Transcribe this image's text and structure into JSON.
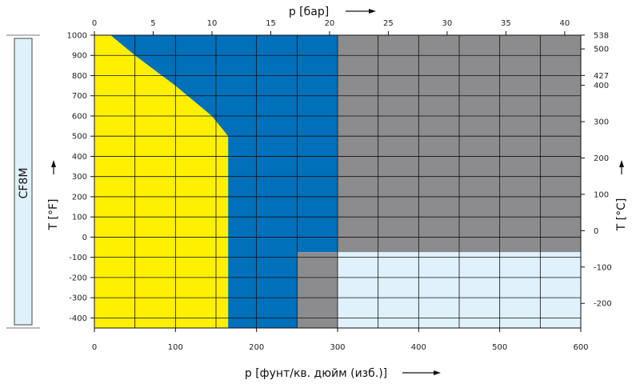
{
  "chart_data": {
    "type": "area",
    "material_label": "CF8M",
    "colors": {
      "yellow_region": "#FFF000",
      "blue_region": "#0070BA",
      "grey_region": "#8C8C8E",
      "light_blue_region": "#DFF1FB",
      "grid": "#111111"
    },
    "x_bottom": {
      "label": "p [фунт/кв. дюйм (изб.)]",
      "unit": "psig",
      "range": [
        0,
        600
      ],
      "ticks": [
        0,
        100,
        200,
        300,
        400,
        500,
        600
      ]
    },
    "x_top": {
      "label": "p [бар]",
      "unit": "bar",
      "range": [
        0,
        41.37
      ],
      "ticks": [
        0,
        5,
        10,
        15,
        20,
        25,
        30,
        35,
        40
      ]
    },
    "y_left": {
      "label": "T [°F]",
      "unit": "°F",
      "range": [
        -450,
        1000
      ],
      "ticks": [
        -400,
        -300,
        -200,
        -100,
        0,
        100,
        200,
        300,
        400,
        500,
        600,
        700,
        800,
        900,
        1000
      ]
    },
    "y_right": {
      "label": "T [°C]",
      "unit": "°C",
      "ticks": [
        -200,
        -100,
        0,
        100,
        200,
        300,
        400,
        427,
        500,
        538
      ]
    },
    "regions": [
      {
        "name": "yellow",
        "color": "yellow_region",
        "polygon": [
          [
            0,
            -450
          ],
          [
            0,
            1000
          ],
          [
            20,
            1000
          ],
          [
            50,
            900
          ],
          [
            100,
            750
          ],
          [
            145,
            600
          ],
          [
            165,
            500
          ],
          [
            165,
            -450
          ]
        ]
      },
      {
        "name": "blue",
        "color": "blue_region",
        "polygon": [
          [
            20,
            1000
          ],
          [
            300,
            1000
          ],
          [
            300,
            -75
          ],
          [
            250,
            -75
          ],
          [
            250,
            -450
          ],
          [
            165,
            -450
          ],
          [
            165,
            500
          ],
          [
            145,
            600
          ],
          [
            100,
            750
          ],
          [
            50,
            900
          ]
        ]
      },
      {
        "name": "grey",
        "color": "grey_region",
        "polygon": [
          [
            300,
            1000
          ],
          [
            600,
            1000
          ],
          [
            600,
            -75
          ],
          [
            300,
            -75
          ],
          [
            300,
            -450
          ],
          [
            250,
            -450
          ],
          [
            250,
            -75
          ],
          [
            300,
            -75
          ]
        ]
      },
      {
        "name": "light-blue",
        "color": "light_blue_region",
        "polygon": [
          [
            300,
            -75
          ],
          [
            600,
            -75
          ],
          [
            600,
            -450
          ],
          [
            300,
            -450
          ]
        ]
      }
    ],
    "grid": true
  }
}
